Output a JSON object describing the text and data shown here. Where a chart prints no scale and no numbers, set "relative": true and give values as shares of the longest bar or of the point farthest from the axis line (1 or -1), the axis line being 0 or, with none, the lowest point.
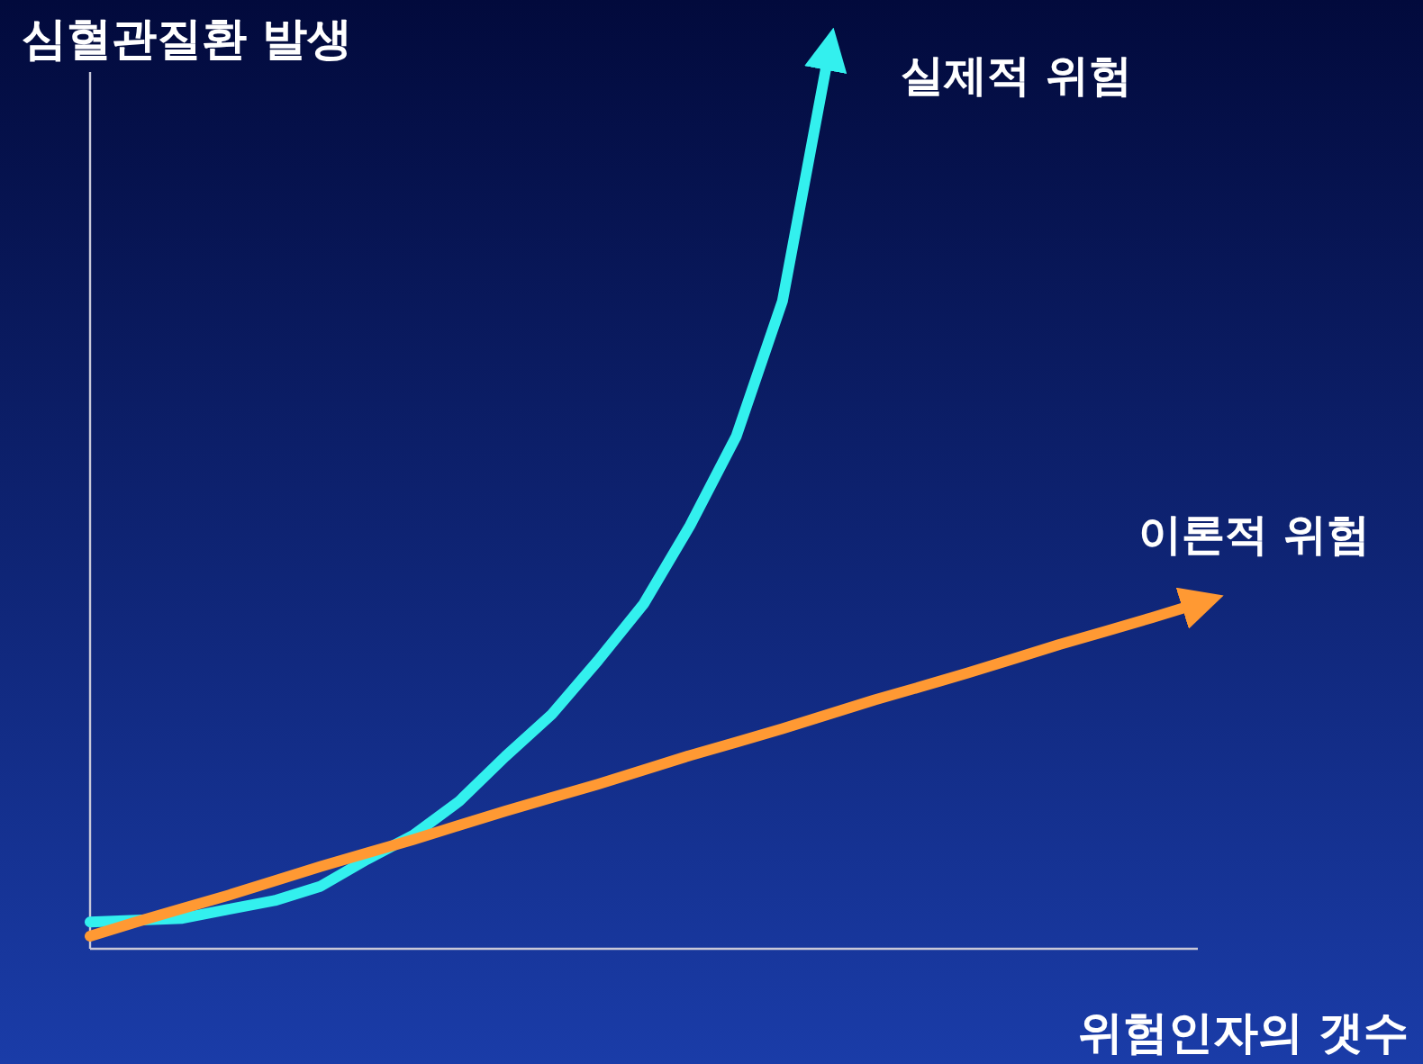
{
  "chart_data": {
    "type": "line",
    "relative": true,
    "ylabel": "심혈관질환 발생",
    "xlabel": "위험인자의 갯수",
    "legend": false,
    "marker": "none",
    "line_style": "solid",
    "categories": [
      null,
      null,
      null,
      null,
      null,
      null,
      null,
      null,
      null,
      null,
      null,
      null,
      null,
      null,
      null,
      null,
      null,
      null,
      null,
      null,
      null,
      null,
      null,
      null,
      null
    ],
    "series": [
      {
        "name": "실제적 위험",
        "color": "#33f0ee",
        "values": [
          0.03,
          0.032,
          0.034,
          0.044,
          0.054,
          0.07,
          0.1,
          0.127,
          0.165,
          0.215,
          0.262,
          0.322,
          0.386,
          0.473,
          0.573,
          0.724,
          1.0,
          null,
          null,
          null,
          null,
          null,
          null,
          null,
          null
        ]
      },
      {
        "name": "이론적 위험",
        "color": "#ff9933",
        "values": [
          0.014,
          0.03,
          0.045,
          0.06,
          0.076,
          0.092,
          0.107,
          0.122,
          0.138,
          0.154,
          0.169,
          0.184,
          0.2,
          0.216,
          0.231,
          0.246,
          0.262,
          0.278,
          0.293,
          0.308,
          0.324,
          0.34,
          0.355,
          0.37,
          0.386
        ]
      }
    ]
  }
}
